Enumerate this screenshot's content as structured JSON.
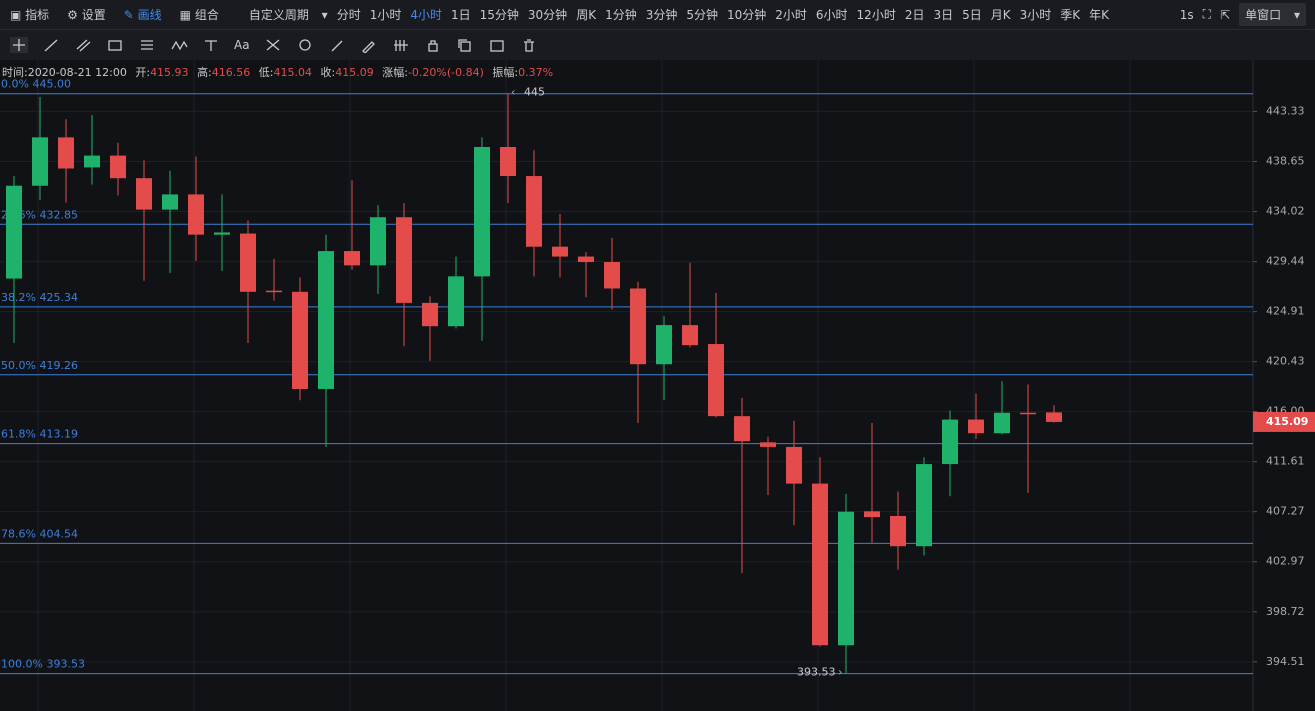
{
  "toolbar": {
    "left": [
      "指标",
      "设置",
      "画线",
      "组合"
    ],
    "period_menu": "自定义周期",
    "periods": [
      "分时",
      "1小时",
      "4小时",
      "1日",
      "15分钟",
      "30分钟",
      "周K",
      "1分钟",
      "3分钟",
      "5分钟",
      "10分钟",
      "2小时",
      "6小时",
      "12小时",
      "2日",
      "3日",
      "5日",
      "月K",
      "3小时",
      "季K",
      "年K"
    ],
    "active_period": 2,
    "active_left": 2,
    "interval": "1s",
    "window": "单窗口"
  },
  "drawing_tools": {
    "font_tool": "Aa"
  },
  "info": {
    "time_label": "时间:",
    "time": "2020-08-21 12:00",
    "open_label": "开:",
    "high_label": "高:",
    "low_label": "低:",
    "close_label": "收:",
    "change_label": "涨幅:",
    "change": "-0.20%(-0.84)",
    "amplitude_label": "振幅:",
    "amplitude": "0.37%"
  },
  "chart_data": {
    "type": "candlestick",
    "log_scale": true,
    "grid": true,
    "up_color": "#1fb26b",
    "down_color": "#e34c4a",
    "fib_color": "#3d7fd9",
    "ylim": [
      391,
      448
    ],
    "yticks": [
      443.33,
      438.65,
      434.02,
      429.44,
      424.91,
      420.43,
      {
        "value": 416,
        "label": "416.00"
      },
      411.61,
      407.27,
      402.97,
      398.72,
      394.51
    ],
    "open": [
      427.9,
      436.4,
      440.9,
      438.1,
      439.2,
      437.1,
      434.2,
      435.6,
      431.9,
      432.0,
      426.8,
      426.7,
      418.0,
      430.4,
      429.1,
      433.5,
      425.7,
      423.6,
      428.1,
      440.0,
      437.3,
      430.8,
      429.9,
      429.4,
      427.0,
      420.2,
      423.7,
      422.0,
      415.6,
      413.3,
      412.9,
      409.7,
      395.9,
      407.3,
      406.9,
      404.3,
      411.4,
      415.3,
      414.1,
      415.9,
      415.93
    ],
    "high": [
      437.3,
      444.7,
      442.6,
      443.0,
      440.4,
      438.75,
      437.8,
      439.1,
      435.6,
      433.2,
      429.7,
      428.0,
      431.9,
      436.9,
      434.6,
      434.8,
      426.3,
      429.9,
      440.9,
      445,
      439.7,
      433.8,
      430.3,
      431.6,
      427.6,
      424.5,
      429.35,
      426.6,
      417.2,
      413.8,
      415.2,
      412.0,
      408.8,
      415.0,
      409.0,
      412.0,
      416.1,
      417.6,
      418.7,
      418.4,
      416.56
    ],
    "low": [
      422.1,
      435.1,
      434.85,
      436.5,
      435.5,
      427.7,
      428.4,
      429.5,
      428.6,
      422.1,
      425.9,
      417.0,
      412.9,
      428.7,
      426.5,
      421.8,
      420.5,
      423.4,
      422.3,
      434.8,
      428.1,
      428.0,
      426.2,
      425.1,
      415.0,
      417.0,
      421.7,
      415.5,
      402.0,
      408.7,
      406.1,
      395.8,
      393.53,
      404.6,
      402.3,
      403.5,
      408.6,
      413.6,
      414.0,
      408.9,
      415.04
    ],
    "close": [
      436.4,
      440.9,
      438.0,
      439.2,
      437.1,
      434.2,
      435.6,
      431.9,
      432.1,
      426.7,
      426.7,
      418.0,
      430.4,
      429.1,
      433.5,
      425.7,
      423.6,
      428.1,
      440.0,
      437.3,
      430.8,
      429.9,
      429.4,
      427.0,
      420.2,
      423.7,
      421.9,
      415.6,
      413.4,
      412.9,
      409.7,
      395.9,
      407.27,
      406.8,
      404.3,
      411.4,
      415.3,
      414.1,
      415.9,
      415.8,
      415.09
    ],
    "fib_levels": [
      {
        "name": "0.0%",
        "value": 445,
        "label": "445.00"
      },
      {
        "name": "23.6%",
        "value": 432.85,
        "label": "432.85"
      },
      {
        "name": "38.2%",
        "value": 425.34,
        "label": "425.34"
      },
      {
        "name": "50.0%",
        "value": 419.26,
        "label": "419.26"
      },
      {
        "name": "61.8%",
        "value": 413.19,
        "label": "413.19"
      },
      {
        "name": "78.6%",
        "value": 404.54,
        "label": "404.54"
      },
      {
        "name": "100.0%",
        "value": 393.53,
        "label": "393.53"
      }
    ],
    "high_marker": 19,
    "low_marker": 32
  }
}
